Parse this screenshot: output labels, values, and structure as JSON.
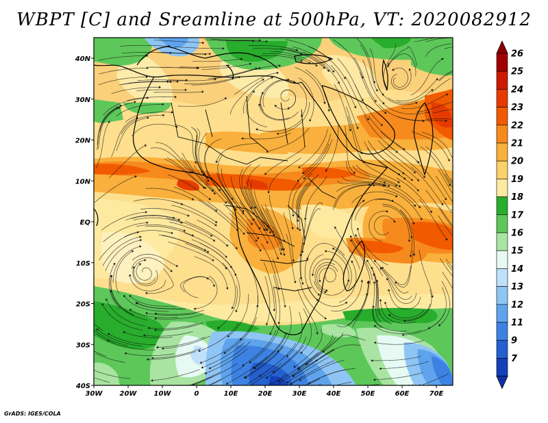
{
  "title": "WBPT [C] and Sreamline at 500hPa, VT: 2020082912",
  "credit": "GrADS: IGES/COLA",
  "map": {
    "lon_ticks": [
      "30W",
      "20W",
      "10W",
      "0",
      "10E",
      "20E",
      "30E",
      "40E",
      "50E",
      "60E",
      "70E"
    ],
    "lat_ticks": [
      "40N",
      "30N",
      "20N",
      "10N",
      "EQ",
      "10S",
      "20S",
      "30S",
      "40S"
    ]
  },
  "colorbar": {
    "levels": [
      {
        "label": "26",
        "color": "#a00000"
      },
      {
        "label": "25",
        "color": "#cc1a00"
      },
      {
        "label": "24",
        "color": "#e63b00"
      },
      {
        "label": "23",
        "color": "#f25a00"
      },
      {
        "label": "22",
        "color": "#f78a1c"
      },
      {
        "label": "21",
        "color": "#f9b03c"
      },
      {
        "label": "20",
        "color": "#fad16a"
      },
      {
        "label": "19",
        "color": "#fdeaa0"
      },
      {
        "label": "18",
        "color": "#28ad2c"
      },
      {
        "label": "17",
        "color": "#5ec75a"
      },
      {
        "label": "16",
        "color": "#a9e4a2"
      },
      {
        "label": "15",
        "color": "#e6f9f2"
      },
      {
        "label": "14",
        "color": "#bfe0fa"
      },
      {
        "label": "13",
        "color": "#8ec5f4"
      },
      {
        "label": "12",
        "color": "#5ea3ec"
      },
      {
        "label": "11",
        "color": "#3d82e2"
      },
      {
        "label": "9",
        "color": "#2460d0"
      },
      {
        "label": "7",
        "color": "#1440b8"
      }
    ],
    "top_arrow_color": "#8a0000",
    "bottom_arrow_color": "#1030a8"
  }
}
